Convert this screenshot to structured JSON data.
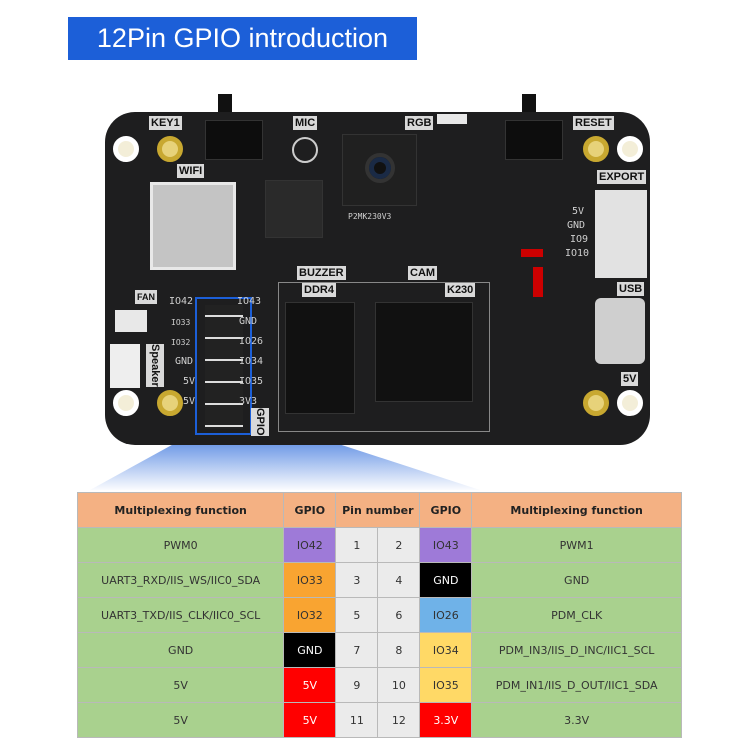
{
  "title": "12Pin GPIO introduction",
  "board": {
    "labels": {
      "key1": "KEY1",
      "mic": "MIC",
      "rgb": "RGB",
      "reset": "RESET",
      "wifi": "WIFI",
      "export": "EXPORT",
      "buzzer": "BUZZER",
      "cam": "CAM",
      "ddr4": "DDR4",
      "k230": "K230",
      "fan": "FAN",
      "usb": "USB",
      "speaker": "Speaker",
      "gpio": "GPIO",
      "usb_5v": "5V",
      "camera_part": "P2MK230V3"
    },
    "export_pins": [
      "5V",
      "GND",
      "IO9",
      "IO10"
    ],
    "gpio_left": [
      "IO42",
      "IO33",
      "IO32",
      "GND",
      "5V",
      "5V"
    ],
    "gpio_right": [
      "IO43",
      "GND",
      "IO26",
      "IO34",
      "IO35",
      "3V3"
    ]
  },
  "colors": {
    "title_bg": "#1c5fd8",
    "header": "#f4b183",
    "function": "#a9d18e",
    "pin": "#ebebeb",
    "purple": "#9e7ad8",
    "orange": "#f9a431",
    "black": "#000000",
    "blue": "#6fb2e8",
    "yellow": "#ffd966",
    "red": "#ff0000"
  },
  "table": {
    "headers": [
      "Multiplexing function",
      "GPIO",
      "Pin number",
      "GPIO",
      "Multiplexing function"
    ],
    "rows": [
      {
        "lf": "PWM0",
        "lg": "IO42",
        "lc": "purple",
        "p1": "1",
        "p2": "2",
        "rg": "IO43",
        "rc": "purple",
        "rf": "PWM1"
      },
      {
        "lf": "UART3_RXD/IIS_WS/IIC0_SDA",
        "lg": "IO33",
        "lc": "orange",
        "p1": "3",
        "p2": "4",
        "rg": "GND",
        "rc": "black",
        "rf": "GND"
      },
      {
        "lf": "UART3_TXD/IIS_CLK/IIC0_SCL",
        "lg": "IO32",
        "lc": "orange",
        "p1": "5",
        "p2": "6",
        "rg": "IO26",
        "rc": "blue",
        "rf": "PDM_CLK"
      },
      {
        "lf": "GND",
        "lg": "GND",
        "lc": "black",
        "p1": "7",
        "p2": "8",
        "rg": "IO34",
        "rc": "yellow",
        "rf": "PDM_IN3/IIS_D_INC/IIC1_SCL"
      },
      {
        "lf": "5V",
        "lg": "5V",
        "lc": "red",
        "p1": "9",
        "p2": "10",
        "rg": "IO35",
        "rc": "yellow",
        "rf": "PDM_IN1/IIS_D_OUT/IIC1_SDA"
      },
      {
        "lf": "5V",
        "lg": "5V",
        "lc": "red",
        "p1": "11",
        "p2": "12",
        "rg": "3.3V",
        "rc": "red",
        "rf": "3.3V"
      }
    ]
  }
}
